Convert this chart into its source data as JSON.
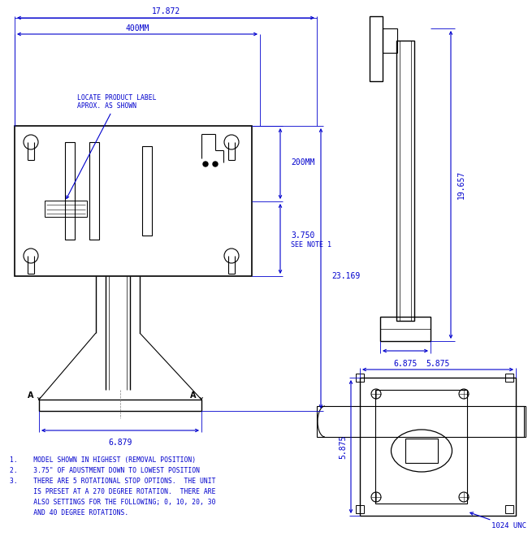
{
  "bg_color": "#ffffff",
  "line_color": "#000000",
  "dim_color": "#0000cd",
  "fig_width": 6.5,
  "fig_height": 6.6,
  "dpi": 100,
  "notes": [
    "1.    MODEL SHOWN IN HIGHEST (REMOVAL POSITION)",
    "2.    3.75\" OF ADUSTMENT DOWN TO LOWEST POSITION",
    "3.    THERE ARE 5 ROTATIONAL STOP OPTIONS.  THE UNIT",
    "      IS PRESET AT A 270 DEGREE ROTATION.  THERE ARE",
    "      ALSO SETTINGS FOR THE FOLLOWING; 0, 10, 20, 30",
    "      AND 40 DEGREE ROTATIONS."
  ],
  "dims": {
    "width_17872": "17.872",
    "width_400mm": "400MM",
    "height_200mm": "200MM",
    "height_3750": "3.750",
    "note1": "SEE NOTE 1",
    "height_23169": "23.169",
    "width_6879": "6.879",
    "height_19657": "19.657",
    "width_6875": "6.875",
    "width_5875_top": "5.875",
    "width_5875_bot": "5.875",
    "label_1024": "1024 UNC",
    "label_product": "LOCATE PRODUCT LABEL\nAPROX. AS SHOWN"
  }
}
